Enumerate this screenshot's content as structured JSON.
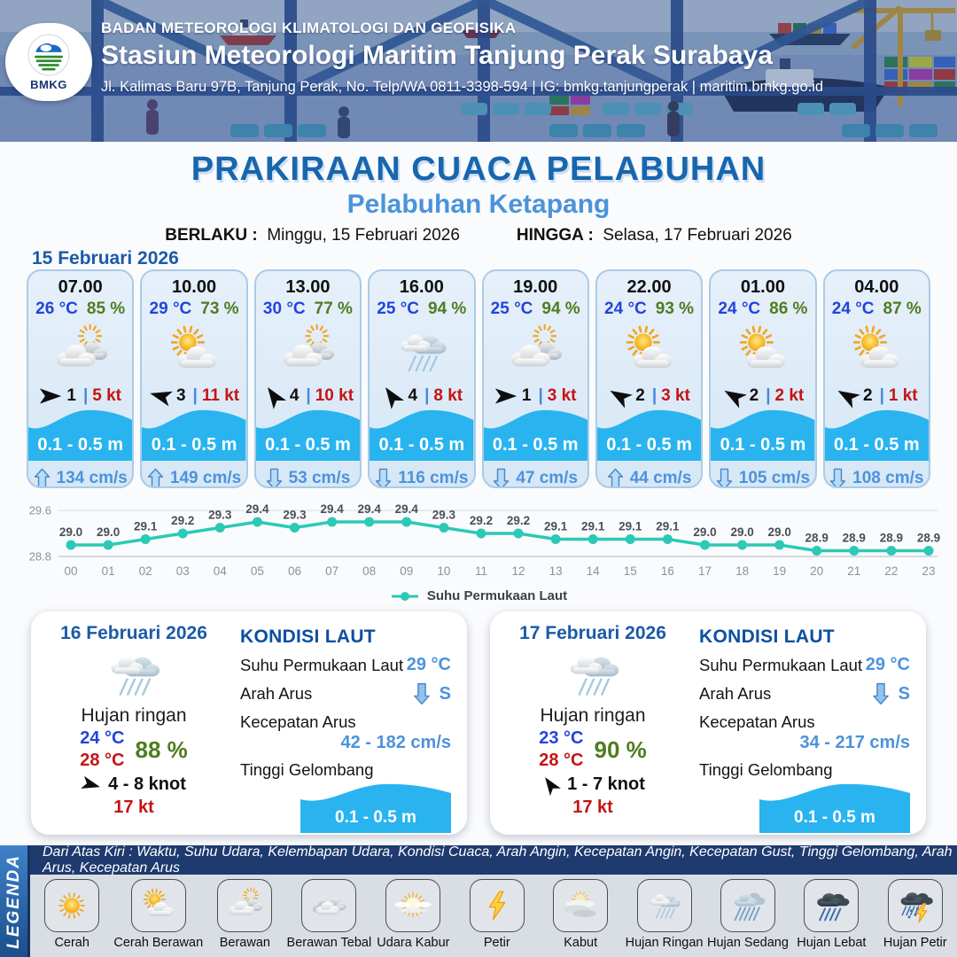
{
  "header": {
    "logo_text": "BMKG",
    "org": "BADAN METEOROLOGI KLIMATOLOGI DAN GEOFISIKA",
    "station": "Stasiun Meteorologi Maritim Tanjung Perak Surabaya",
    "address": "Jl. Kalimas Baru 97B, Tanjung Perak, No. Telp/WA 0811-3398-594 | IG: bmkg.tanjungperak | maritim.bmkg.go.id"
  },
  "title": {
    "main": "PRAKIRAAN CUACA PELABUHAN",
    "port": "Pelabuhan Ketapang",
    "berlaku_label": "BERLAKU :",
    "berlaku_value": "Minggu, 15 Februari 2026",
    "hingga_label": "HINGGA :",
    "hingga_value": "Selasa, 17 Februari 2026"
  },
  "forecast_date": "15 Februari 2026",
  "hourly": [
    {
      "time": "07.00",
      "temp": "26 °C",
      "humidity": "85 %",
      "icon": "berawan",
      "wind_deg": 0,
      "wind_val": "1",
      "wind_speed": "5 kt",
      "wave": "0.1 - 0.5 m",
      "current_dir": "up",
      "current": "134 cm/s"
    },
    {
      "time": "10.00",
      "temp": "29 °C",
      "humidity": "73 %",
      "icon": "cerah-berawan",
      "wind_deg": 195,
      "wind_val": "3",
      "wind_speed": "11 kt",
      "wave": "0.1 - 0.5 m",
      "current_dir": "up",
      "current": "149 cm/s"
    },
    {
      "time": "13.00",
      "temp": "30 °C",
      "humidity": "77 %",
      "icon": "berawan",
      "wind_deg": 235,
      "wind_val": "4",
      "wind_speed": "10 kt",
      "wave": "0.1 - 0.5 m",
      "current_dir": "down",
      "current": "53 cm/s"
    },
    {
      "time": "16.00",
      "temp": "25 °C",
      "humidity": "94 %",
      "icon": "hujan-ringan",
      "wind_deg": 235,
      "wind_val": "4",
      "wind_speed": "8 kt",
      "wave": "0.1 - 0.5 m",
      "current_dir": "down",
      "current": "116 cm/s"
    },
    {
      "time": "19.00",
      "temp": "25 °C",
      "humidity": "94 %",
      "icon": "berawan",
      "wind_deg": 0,
      "wind_val": "1",
      "wind_speed": "3 kt",
      "wave": "0.1 - 0.5 m",
      "current_dir": "down",
      "current": "47 cm/s"
    },
    {
      "time": "22.00",
      "temp": "24 °C",
      "humidity": "93 %",
      "icon": "cerah-berawan",
      "wind_deg": 210,
      "wind_val": "2",
      "wind_speed": "3 kt",
      "wave": "0.1 - 0.5 m",
      "current_dir": "up",
      "current": "44 cm/s"
    },
    {
      "time": "01.00",
      "temp": "24 °C",
      "humidity": "86 %",
      "icon": "cerah-berawan",
      "wind_deg": 210,
      "wind_val": "2",
      "wind_speed": "2 kt",
      "wave": "0.1 - 0.5 m",
      "current_dir": "down",
      "current": "105 cm/s"
    },
    {
      "time": "04.00",
      "temp": "24 °C",
      "humidity": "87 %",
      "icon": "cerah-berawan",
      "wind_deg": 210,
      "wind_val": "2",
      "wind_speed": "1 kt",
      "wave": "0.1 - 0.5 m",
      "current_dir": "down",
      "current": "108 cm/s"
    }
  ],
  "chart_data": {
    "type": "line",
    "x": [
      "00",
      "01",
      "02",
      "03",
      "04",
      "05",
      "06",
      "07",
      "08",
      "09",
      "10",
      "11",
      "12",
      "13",
      "14",
      "15",
      "16",
      "17",
      "18",
      "19",
      "20",
      "21",
      "22",
      "23"
    ],
    "series": [
      {
        "name": "Suhu Permukaan Laut",
        "values": [
          29.0,
          29.0,
          29.1,
          29.2,
          29.3,
          29.4,
          29.3,
          29.4,
          29.4,
          29.4,
          29.3,
          29.2,
          29.2,
          29.1,
          29.1,
          29.1,
          29.1,
          29.0,
          29.0,
          29.0,
          28.9,
          28.9,
          28.9,
          28.9
        ]
      }
    ],
    "ylim": [
      28.8,
      29.6
    ],
    "yticks": [
      28.8,
      29.6
    ],
    "line_color": "#2cc9b4",
    "grid": true,
    "legend_position": "bottom"
  },
  "daily": [
    {
      "date": "16 Februari 2026",
      "icon": "hujan-ringan",
      "condition": "Hujan ringan",
      "temp_min": "24 °C",
      "temp_max": "28 °C",
      "humidity": "88 %",
      "wind_deg": 15,
      "wind_range": "4 - 8 knot",
      "gust": "17 kt",
      "sea": {
        "title": "KONDISI LAUT",
        "sst_label": "Suhu Permukaan Laut",
        "sst": "29 °C",
        "dir_label": "Arah Arus",
        "dir": "S",
        "speed_label": "Kecepatan Arus",
        "speed": "42 - 182 cm/s",
        "wave_label": "Tinggi Gelombang",
        "wave": "0.1 - 0.5 m"
      }
    },
    {
      "date": "17 Februari 2026",
      "icon": "hujan-ringan",
      "condition": "Hujan ringan",
      "temp_min": "23 °C",
      "temp_max": "28 °C",
      "humidity": "90 %",
      "wind_deg": 235,
      "wind_range": "1 - 7 knot",
      "gust": "17 kt",
      "sea": {
        "title": "KONDISI LAUT",
        "sst_label": "Suhu Permukaan Laut",
        "sst": "29 °C",
        "dir_label": "Arah Arus",
        "dir": "S",
        "speed_label": "Kecepatan Arus",
        "speed": "34 - 217 cm/s",
        "wave_label": "Tinggi Gelombang",
        "wave": "0.1 - 0.5 m"
      }
    }
  ],
  "legend": {
    "title": "LEGENDA",
    "description": "Dari Atas Kiri : Waktu, Suhu Udara, Kelembapan Udara, Kondisi Cuaca, Arah Angin, Kecepatan Angin, Kecepatan Gust, Tinggi Gelombang, Arah Arus, Kecepatan Arus",
    "items": [
      {
        "label": "Cerah",
        "icon": "cerah"
      },
      {
        "label": "Cerah Berawan",
        "icon": "cerah-berawan"
      },
      {
        "label": "Berawan",
        "icon": "berawan"
      },
      {
        "label": "Berawan Tebal",
        "icon": "berawan-tebal"
      },
      {
        "label": "Udara Kabur",
        "icon": "udara-kabur"
      },
      {
        "label": "Petir",
        "icon": "petir"
      },
      {
        "label": "Kabut",
        "icon": "kabut"
      },
      {
        "label": "Hujan Ringan",
        "icon": "hujan-ringan"
      },
      {
        "label": "Hujan Sedang",
        "icon": "hujan-sedang"
      },
      {
        "label": "Hujan Lebat",
        "icon": "hujan-lebat"
      },
      {
        "label": "Hujan Petir",
        "icon": "hujan-petir"
      }
    ]
  },
  "colors": {
    "accent_blue": "#1766ae",
    "light_blue": "#4b93da",
    "temp_blue": "#2244dd",
    "humidity_green": "#4e7d1f",
    "wind_red": "#c41414",
    "wave_blue": "#29b4ef",
    "current_blue": "#4c93dc",
    "chart_teal": "#2cc9b4",
    "navy": "#1e3a6e",
    "date_blue": "#1c5aa8"
  }
}
